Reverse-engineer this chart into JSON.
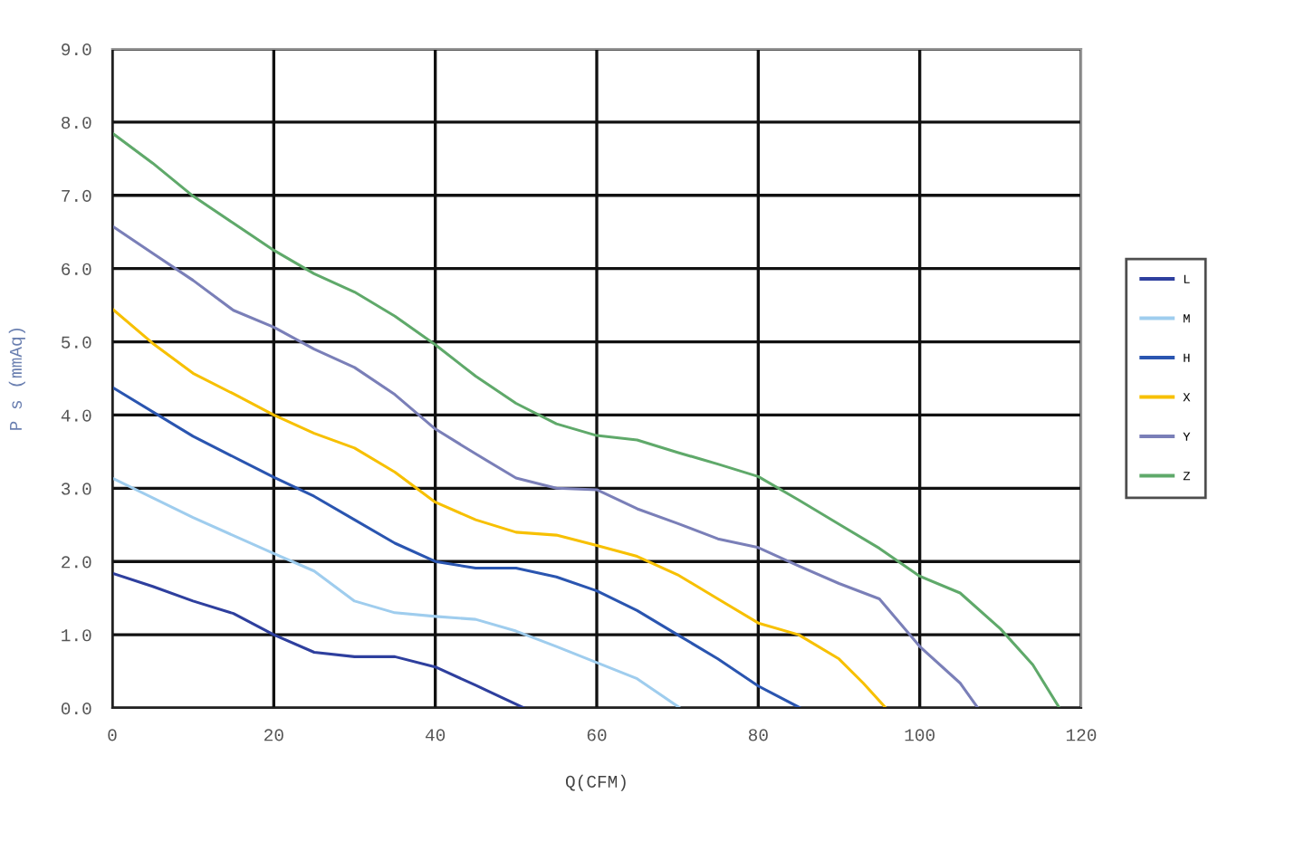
{
  "chart_data": {
    "type": "line",
    "xlabel": "Q(CFM)",
    "ylabel": "P s (mmAq)",
    "xlim": [
      0,
      120
    ],
    "xticks": [
      0,
      20,
      40,
      60,
      80,
      100,
      120
    ],
    "ylim": [
      0,
      9
    ],
    "yticks": [
      {
        "value": 0,
        "label": "0.0"
      },
      {
        "value": 1,
        "label": "1.0"
      },
      {
        "value": 2,
        "label": "2.0"
      },
      {
        "value": 3,
        "label": "3.0"
      },
      {
        "value": 4,
        "label": "4.0"
      },
      {
        "value": 5,
        "label": "5.0"
      },
      {
        "value": 6,
        "label": "6.0"
      },
      {
        "value": 7,
        "label": "7.0"
      },
      {
        "value": 8,
        "label": "8.0"
      },
      {
        "value": 9,
        "label": "9.0"
      }
    ],
    "grid": true,
    "legend": "right",
    "marker": "none",
    "line_style": "solid",
    "series": [
      {
        "name": "L",
        "color": "#2e3f9e",
        "x": [
          0,
          5,
          10,
          15,
          20,
          25,
          30,
          35,
          40,
          45,
          51
        ],
        "values": [
          1.84,
          1.66,
          1.46,
          1.29,
          1.0,
          0.76,
          0.7,
          0.7,
          0.56,
          0.31,
          0
        ]
      },
      {
        "name": "M",
        "color": "#9fcdee",
        "x": [
          0,
          10,
          20,
          25,
          30,
          35,
          40,
          45,
          50,
          55,
          60,
          65,
          70.3
        ],
        "values": [
          3.14,
          2.6,
          2.11,
          1.87,
          1.46,
          1.3,
          1.25,
          1.21,
          1.05,
          0.84,
          0.62,
          0.4,
          0
        ]
      },
      {
        "name": "H",
        "color": "#2a55b0",
        "x": [
          0,
          10,
          20,
          25,
          30,
          35,
          40,
          45,
          50,
          55,
          60,
          65,
          70,
          75,
          80,
          85.2
        ],
        "values": [
          4.38,
          3.71,
          3.15,
          2.89,
          2.57,
          2.25,
          2.0,
          1.91,
          1.91,
          1.79,
          1.6,
          1.33,
          1.0,
          0.67,
          0.3,
          0
        ]
      },
      {
        "name": "X",
        "color": "#f7c000",
        "x": [
          0,
          5,
          10,
          15,
          20,
          25,
          30,
          35,
          40,
          45,
          50,
          55,
          60,
          65,
          70,
          75,
          80,
          85,
          90,
          93,
          95.8
        ],
        "values": [
          5.45,
          4.98,
          4.57,
          4.29,
          4.0,
          3.75,
          3.55,
          3.22,
          2.81,
          2.57,
          2.4,
          2.36,
          2.22,
          2.07,
          1.82,
          1.49,
          1.16,
          1.0,
          0.67,
          0.34,
          0
        ]
      },
      {
        "name": "Y",
        "color": "#7a7fb8",
        "x": [
          0,
          5,
          10,
          15,
          20,
          25,
          30,
          35,
          40,
          45,
          50,
          55,
          60,
          65,
          70,
          75,
          80,
          85,
          90,
          95,
          100,
          105,
          107.2
        ],
        "values": [
          6.58,
          6.21,
          5.84,
          5.43,
          5.2,
          4.9,
          4.65,
          4.28,
          3.81,
          3.47,
          3.14,
          3.0,
          2.98,
          2.72,
          2.52,
          2.31,
          2.19,
          1.94,
          1.7,
          1.49,
          0.84,
          0.34,
          0
        ]
      },
      {
        "name": "Z",
        "color": "#5fa96a",
        "x": [
          0,
          5,
          10,
          15,
          20,
          25,
          30,
          35,
          40,
          45,
          50,
          55,
          60,
          65,
          70,
          75,
          80,
          85,
          90,
          95,
          100,
          105,
          110,
          114,
          117.3
        ],
        "values": [
          7.85,
          7.44,
          6.99,
          6.62,
          6.25,
          5.93,
          5.68,
          5.35,
          4.96,
          4.53,
          4.16,
          3.88,
          3.72,
          3.66,
          3.49,
          3.33,
          3.16,
          2.84,
          2.51,
          2.18,
          1.8,
          1.57,
          1.08,
          0.59,
          0
        ]
      }
    ]
  }
}
